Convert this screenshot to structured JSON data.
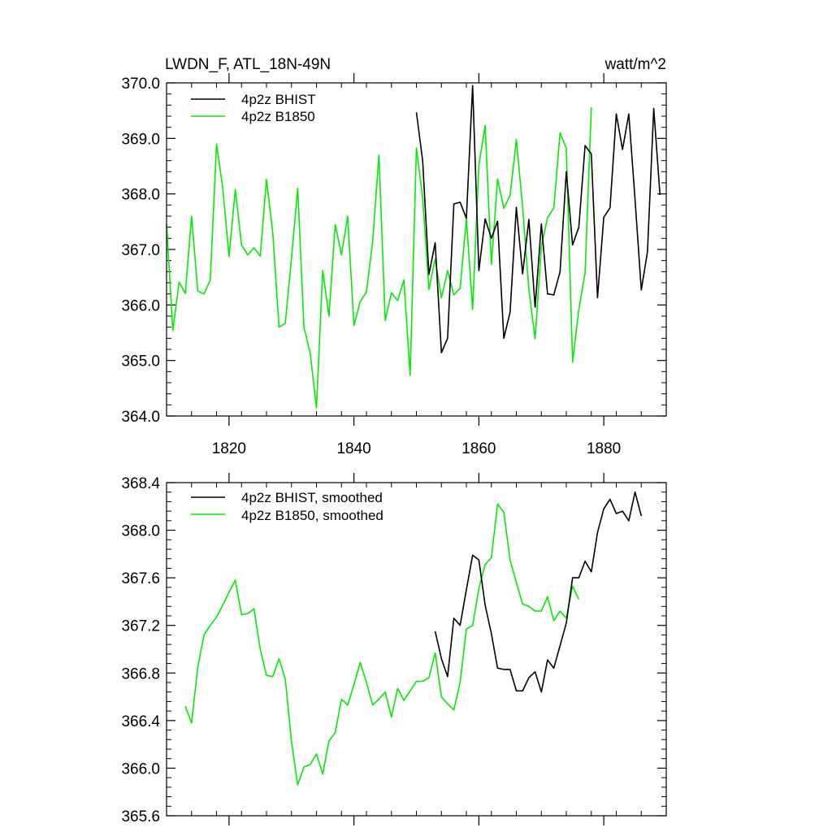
{
  "colors": {
    "bhist": "#000000",
    "b1850": "#00ee00"
  },
  "chart_data": [
    {
      "type": "line",
      "title": "LWDN_F, ATL_18N-49N",
      "units": "watt/m^2",
      "xlim": [
        1810,
        1890
      ],
      "ylim": [
        364.0,
        370.0
      ],
      "x_ticks": [
        1820,
        1840,
        1860,
        1880
      ],
      "y_ticks": [
        "364.0",
        "365.0",
        "366.0",
        "367.0",
        "368.0",
        "369.0",
        "370.0"
      ],
      "legend_position": "top-left",
      "grid": false,
      "series": [
        {
          "name": "4p2z BHIST",
          "color": "#000000",
          "x": [
            1850,
            1851,
            1852,
            1853,
            1854,
            1855,
            1856,
            1857,
            1858,
            1859,
            1860,
            1861,
            1862,
            1863,
            1864,
            1865,
            1866,
            1867,
            1868,
            1869,
            1870,
            1871,
            1872,
            1873,
            1874,
            1875,
            1876,
            1877,
            1878,
            1879,
            1880,
            1881,
            1882,
            1883,
            1884,
            1885,
            1886,
            1887,
            1888,
            1889
          ],
          "y": [
            369.47,
            368.6,
            366.55,
            367.12,
            365.14,
            365.4,
            367.82,
            367.85,
            367.56,
            369.95,
            366.62,
            367.55,
            367.2,
            367.51,
            365.4,
            365.87,
            367.76,
            366.56,
            367.54,
            365.96,
            367.46,
            366.2,
            366.18,
            366.6,
            368.4,
            367.08,
            367.4,
            368.87,
            368.72,
            366.13,
            367.58,
            367.75,
            369.44,
            368.8,
            369.44,
            367.9,
            366.27,
            366.96,
            369.54,
            367.98
          ]
        },
        {
          "name": "4p2z B1850",
          "color": "#00ee00",
          "x": [
            1810,
            1811,
            1812,
            1813,
            1814,
            1815,
            1816,
            1817,
            1818,
            1819,
            1820,
            1821,
            1822,
            1823,
            1824,
            1825,
            1826,
            1827,
            1828,
            1829,
            1830,
            1831,
            1832,
            1833,
            1834,
            1835,
            1836,
            1837,
            1838,
            1839,
            1840,
            1841,
            1842,
            1843,
            1844,
            1845,
            1846,
            1847,
            1848,
            1849,
            1850,
            1851,
            1852,
            1853,
            1854,
            1855,
            1856,
            1857,
            1858,
            1859,
            1860,
            1861,
            1862,
            1863,
            1864,
            1865,
            1866,
            1867,
            1868,
            1869,
            1870,
            1871,
            1872,
            1873,
            1874,
            1875,
            1876,
            1877,
            1878
          ],
          "y": [
            367.46,
            365.54,
            366.41,
            366.21,
            367.6,
            366.25,
            366.2,
            366.45,
            368.9,
            368.1,
            366.87,
            368.08,
            367.08,
            366.9,
            367.03,
            366.88,
            368.26,
            367.3,
            365.6,
            365.67,
            366.85,
            368.1,
            365.6,
            365.13,
            364.15,
            366.62,
            365.8,
            367.45,
            366.9,
            367.6,
            365.63,
            366.06,
            366.23,
            367.15,
            368.7,
            365.72,
            366.22,
            366.08,
            366.45,
            364.73,
            368.83,
            367.93,
            366.28,
            366.83,
            366.13,
            366.62,
            366.18,
            366.3,
            367.55,
            365.92,
            368.52,
            369.23,
            366.73,
            368.27,
            367.74,
            367.97,
            368.98,
            367.77,
            366.28,
            365.39,
            367.06,
            367.57,
            367.75,
            369.1,
            368.82,
            364.97,
            365.92,
            366.58,
            369.56
          ]
        }
      ]
    },
    {
      "type": "line",
      "xlim": [
        1810,
        1890
      ],
      "ylim": [
        365.6,
        368.4
      ],
      "y_ticks": [
        "365.6",
        "366.0",
        "366.4",
        "366.8",
        "367.2",
        "367.6",
        "368.0",
        "368.4"
      ],
      "legend_position": "top-left",
      "grid": false,
      "series": [
        {
          "name": "4p2z BHIST, smoothed",
          "color": "#000000",
          "x": [
            1853,
            1854,
            1855,
            1856,
            1857,
            1858,
            1859,
            1860,
            1861,
            1862,
            1863,
            1864,
            1865,
            1866,
            1867,
            1868,
            1869,
            1870,
            1871,
            1872,
            1873,
            1874,
            1875,
            1876,
            1877,
            1878,
            1879,
            1880,
            1881,
            1882,
            1883,
            1884,
            1885,
            1886
          ],
          "y": [
            367.15,
            366.92,
            366.77,
            367.26,
            367.2,
            367.5,
            367.79,
            367.75,
            367.37,
            367.13,
            366.84,
            366.83,
            366.83,
            366.65,
            366.65,
            366.76,
            366.81,
            366.64,
            366.91,
            366.84,
            367.03,
            367.22,
            367.6,
            367.6,
            367.74,
            367.65,
            367.98,
            368.18,
            368.26,
            368.14,
            368.16,
            368.08,
            368.32,
            368.12
          ]
        },
        {
          "name": "4p2z B1850, smoothed",
          "color": "#00ee00",
          "x": [
            1813,
            1814,
            1815,
            1816,
            1817,
            1818,
            1819,
            1820,
            1821,
            1822,
            1823,
            1824,
            1825,
            1826,
            1827,
            1828,
            1829,
            1830,
            1831,
            1832,
            1833,
            1834,
            1835,
            1836,
            1837,
            1838,
            1839,
            1840,
            1841,
            1842,
            1843,
            1844,
            1845,
            1846,
            1847,
            1848,
            1849,
            1850,
            1851,
            1852,
            1853,
            1854,
            1855,
            1856,
            1857,
            1858,
            1859,
            1860,
            1861,
            1862,
            1863,
            1864,
            1865,
            1866,
            1867,
            1868,
            1869,
            1870,
            1871,
            1872,
            1873,
            1874,
            1875,
            1876
          ],
          "y": [
            366.52,
            366.38,
            366.85,
            367.12,
            367.2,
            367.27,
            367.37,
            367.48,
            367.58,
            367.29,
            367.3,
            367.34,
            367.0,
            366.78,
            366.77,
            366.92,
            366.75,
            366.22,
            365.86,
            366.01,
            366.03,
            366.12,
            365.95,
            366.23,
            366.3,
            366.58,
            366.53,
            366.7,
            366.89,
            366.72,
            366.53,
            366.58,
            366.64,
            366.43,
            366.67,
            366.57,
            366.65,
            366.73,
            366.73,
            366.76,
            366.97,
            366.6,
            366.54,
            366.49,
            366.72,
            367.17,
            367.2,
            367.51,
            367.71,
            367.77,
            368.22,
            368.15,
            367.75,
            367.56,
            367.38,
            367.36,
            367.32,
            367.32,
            367.44,
            367.24,
            367.32,
            367.26,
            367.53,
            367.42
          ]
        }
      ]
    }
  ]
}
